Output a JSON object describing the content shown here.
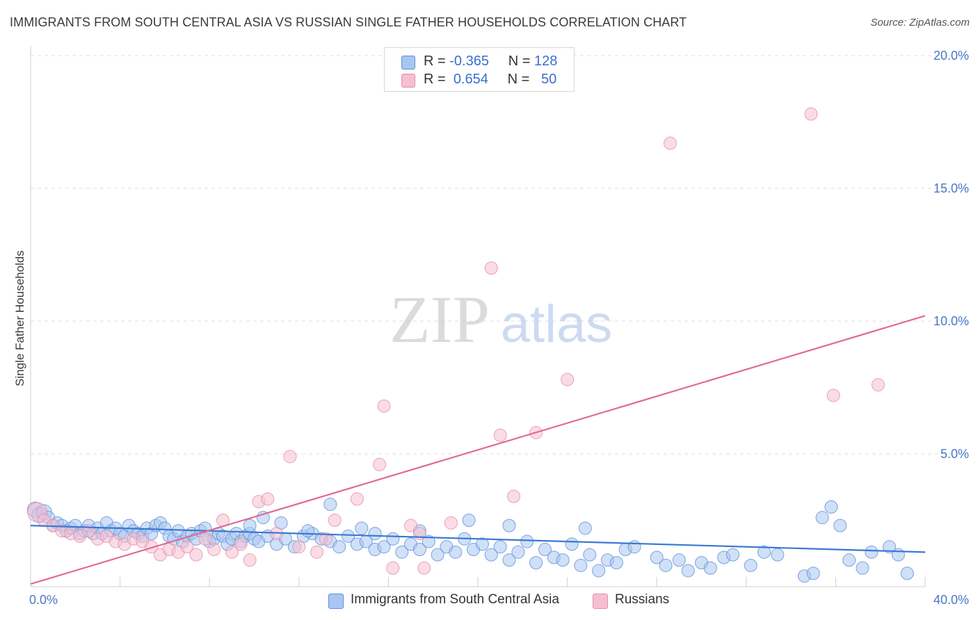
{
  "title": "IMMIGRANTS FROM SOUTH CENTRAL ASIA VS RUSSIAN SINGLE FATHER HOUSEHOLDS CORRELATION CHART",
  "source": "Source: ZipAtlas.com",
  "watermark": {
    "zip": "ZIP",
    "atlas": "atlas"
  },
  "legend": {
    "rows": [
      {
        "r_label": "R =",
        "r_value": "-0.365",
        "n_label": "N =",
        "n_value": "128"
      },
      {
        "r_label": "R =",
        "r_value": "0.654",
        "n_label": "N =",
        "n_value": "50"
      }
    ]
  },
  "bottom_legend": {
    "series1": "Immigrants from South Central Asia",
    "series2": "Russians"
  },
  "colors": {
    "blue_fill": "#a9c6f0",
    "blue_stroke": "#5b8fd8",
    "blue_line": "#3a78d4",
    "pink_fill": "#f6bfd0",
    "pink_stroke": "#e889a8",
    "pink_line": "#e06a94",
    "grid": "#dcdcdc",
    "tick_text": "#4a78c8"
  },
  "chart_data": {
    "type": "scatter",
    "title": "IMMIGRANTS FROM SOUTH CENTRAL ASIA VS RUSSIAN SINGLE FATHER HOUSEHOLDS CORRELATION CHART",
    "xlabel": "",
    "ylabel": "Single Father Households",
    "xlim": [
      0,
      40
    ],
    "ylim": [
      0,
      20
    ],
    "x_tick_labels": [
      "0.0%",
      "40.0%"
    ],
    "y_ticks": [
      5,
      10,
      15,
      20
    ],
    "y_tick_labels": [
      "5.0%",
      "10.0%",
      "15.0%",
      "20.0%"
    ],
    "grid": true,
    "legend_position": "top-center",
    "series": [
      {
        "name": "Immigrants from South Central Asia",
        "color": "#5b8fd8",
        "r": -0.365,
        "n": 128,
        "trend": [
          [
            0,
            2.3
          ],
          [
            40,
            1.3
          ]
        ],
        "points": [
          [
            0.2,
            2.9
          ],
          [
            0.4,
            2.7
          ],
          [
            0.6,
            2.8
          ],
          [
            0.8,
            2.6
          ],
          [
            1.0,
            2.3
          ],
          [
            1.2,
            2.4
          ],
          [
            1.4,
            2.3
          ],
          [
            1.6,
            2.1
          ],
          [
            1.8,
            2.2
          ],
          [
            2.0,
            2.3
          ],
          [
            2.2,
            2.0
          ],
          [
            2.4,
            2.1
          ],
          [
            2.6,
            2.3
          ],
          [
            2.8,
            2.0
          ],
          [
            3.0,
            2.2
          ],
          [
            3.2,
            2.0
          ],
          [
            3.4,
            2.4
          ],
          [
            3.6,
            2.1
          ],
          [
            3.8,
            2.2
          ],
          [
            4.0,
            2.0
          ],
          [
            4.2,
            1.9
          ],
          [
            4.4,
            2.3
          ],
          [
            4.6,
            2.1
          ],
          [
            4.8,
            2.0
          ],
          [
            5.0,
            1.9
          ],
          [
            5.2,
            2.2
          ],
          [
            5.4,
            2.0
          ],
          [
            5.6,
            2.3
          ],
          [
            5.8,
            2.4
          ],
          [
            6.0,
            2.2
          ],
          [
            6.2,
            1.9
          ],
          [
            6.4,
            1.8
          ],
          [
            6.6,
            2.1
          ],
          [
            6.8,
            1.7
          ],
          [
            7.0,
            1.9
          ],
          [
            7.2,
            2.0
          ],
          [
            7.4,
            1.8
          ],
          [
            7.6,
            2.1
          ],
          [
            7.8,
            2.2
          ],
          [
            8.0,
            1.7
          ],
          [
            8.2,
            1.8
          ],
          [
            8.4,
            2.0
          ],
          [
            8.6,
            1.9
          ],
          [
            8.8,
            1.6
          ],
          [
            9.0,
            1.8
          ],
          [
            9.2,
            2.0
          ],
          [
            9.4,
            1.7
          ],
          [
            9.6,
            1.9
          ],
          [
            9.8,
            2.0
          ],
          [
            10.0,
            1.8
          ],
          [
            10.2,
            1.7
          ],
          [
            10.6,
            1.9
          ],
          [
            11.0,
            1.6
          ],
          [
            11.4,
            1.8
          ],
          [
            11.8,
            1.5
          ],
          [
            12.2,
            1.9
          ],
          [
            12.6,
            2.0
          ],
          [
            13.0,
            1.8
          ],
          [
            13.4,
            1.7
          ],
          [
            13.8,
            1.5
          ],
          [
            14.2,
            1.9
          ],
          [
            14.6,
            1.6
          ],
          [
            15.0,
            1.7
          ],
          [
            15.4,
            1.4
          ],
          [
            15.8,
            1.5
          ],
          [
            16.2,
            1.8
          ],
          [
            16.6,
            1.3
          ],
          [
            17.0,
            1.6
          ],
          [
            17.4,
            1.4
          ],
          [
            17.8,
            1.7
          ],
          [
            18.2,
            1.2
          ],
          [
            18.6,
            1.5
          ],
          [
            19.0,
            1.3
          ],
          [
            19.4,
            1.8
          ],
          [
            19.8,
            1.4
          ],
          [
            20.2,
            1.6
          ],
          [
            20.6,
            1.2
          ],
          [
            21.0,
            1.5
          ],
          [
            21.4,
            1.0
          ],
          [
            21.8,
            1.3
          ],
          [
            22.2,
            1.7
          ],
          [
            22.6,
            0.9
          ],
          [
            23.0,
            1.4
          ],
          [
            23.4,
            1.1
          ],
          [
            23.8,
            1.0
          ],
          [
            24.2,
            1.6
          ],
          [
            24.6,
            0.8
          ],
          [
            25.0,
            1.2
          ],
          [
            25.4,
            0.6
          ],
          [
            25.8,
            1.0
          ],
          [
            26.2,
            0.9
          ],
          [
            26.6,
            1.4
          ],
          [
            27.0,
            1.5
          ],
          [
            28.0,
            1.1
          ],
          [
            28.4,
            0.8
          ],
          [
            29.0,
            1.0
          ],
          [
            29.4,
            0.6
          ],
          [
            30.0,
            0.9
          ],
          [
            30.4,
            0.7
          ],
          [
            31.0,
            1.1
          ],
          [
            31.4,
            1.2
          ],
          [
            32.2,
            0.8
          ],
          [
            32.8,
            1.3
          ],
          [
            33.4,
            1.2
          ],
          [
            34.6,
            0.4
          ],
          [
            35.0,
            0.5
          ],
          [
            35.4,
            2.6
          ],
          [
            35.8,
            3.0
          ],
          [
            36.2,
            2.3
          ],
          [
            36.6,
            1.0
          ],
          [
            37.2,
            0.7
          ],
          [
            37.6,
            1.3
          ],
          [
            38.4,
            1.5
          ],
          [
            38.8,
            1.2
          ],
          [
            39.2,
            0.5
          ],
          [
            9.8,
            2.3
          ],
          [
            10.4,
            2.6
          ],
          [
            11.2,
            2.4
          ],
          [
            12.4,
            2.1
          ],
          [
            13.4,
            3.1
          ],
          [
            14.8,
            2.2
          ],
          [
            15.4,
            2.0
          ],
          [
            17.4,
            2.1
          ],
          [
            19.6,
            2.5
          ],
          [
            21.4,
            2.3
          ],
          [
            24.8,
            2.2
          ]
        ]
      },
      {
        "name": "Russians",
        "color": "#e889a8",
        "r": 0.654,
        "n": 50,
        "trend": [
          [
            0,
            0.1
          ],
          [
            40,
            10.2
          ]
        ],
        "points": [
          [
            0.3,
            2.8
          ],
          [
            0.6,
            2.5
          ],
          [
            1.0,
            2.3
          ],
          [
            1.4,
            2.1
          ],
          [
            1.8,
            2.0
          ],
          [
            2.2,
            1.9
          ],
          [
            2.6,
            2.1
          ],
          [
            3.0,
            1.8
          ],
          [
            3.4,
            1.9
          ],
          [
            3.8,
            1.7
          ],
          [
            4.2,
            1.6
          ],
          [
            4.6,
            1.8
          ],
          [
            5.0,
            1.7
          ],
          [
            5.4,
            1.5
          ],
          [
            5.8,
            1.2
          ],
          [
            6.2,
            1.4
          ],
          [
            6.6,
            1.3
          ],
          [
            7.0,
            1.5
          ],
          [
            7.4,
            1.2
          ],
          [
            7.8,
            1.8
          ],
          [
            8.2,
            1.4
          ],
          [
            8.6,
            2.5
          ],
          [
            9.0,
            1.3
          ],
          [
            9.4,
            1.6
          ],
          [
            9.8,
            1.0
          ],
          [
            10.2,
            3.2
          ],
          [
            10.6,
            3.3
          ],
          [
            11.0,
            2.0
          ],
          [
            11.6,
            4.9
          ],
          [
            12.0,
            1.5
          ],
          [
            12.8,
            1.3
          ],
          [
            13.2,
            1.8
          ],
          [
            13.6,
            2.5
          ],
          [
            14.6,
            3.3
          ],
          [
            15.6,
            4.6
          ],
          [
            15.8,
            6.8
          ],
          [
            16.2,
            0.7
          ],
          [
            17.0,
            2.3
          ],
          [
            17.4,
            2.0
          ],
          [
            17.6,
            0.7
          ],
          [
            18.8,
            2.4
          ],
          [
            20.6,
            12.0
          ],
          [
            21.0,
            5.7
          ],
          [
            21.6,
            3.4
          ],
          [
            22.6,
            5.8
          ],
          [
            24.0,
            7.8
          ],
          [
            28.6,
            16.7
          ],
          [
            34.9,
            17.8
          ],
          [
            35.9,
            7.2
          ],
          [
            37.9,
            7.6
          ]
        ]
      }
    ]
  }
}
